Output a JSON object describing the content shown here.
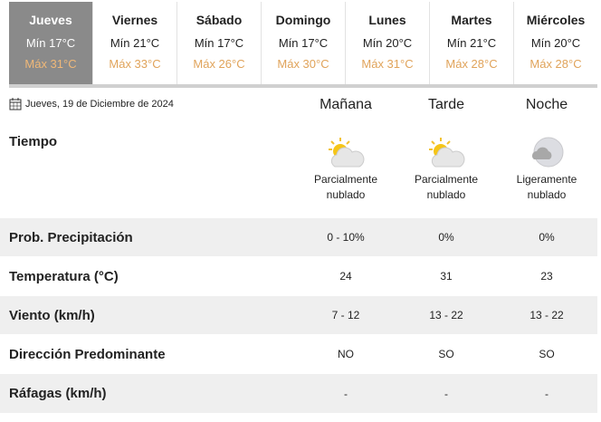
{
  "days": [
    {
      "day": "Jueves",
      "min": "Mín 17°C",
      "max": "Máx 31°C",
      "active": true
    },
    {
      "day": "Viernes",
      "min": "Mín 21°C",
      "max": "Máx 33°C"
    },
    {
      "day": "Sábado",
      "min": "Mín 17°C",
      "max": "Máx 26°C"
    },
    {
      "day": "Domingo",
      "min": "Mín 17°C",
      "max": "Máx 30°C"
    },
    {
      "day": "Lunes",
      "min": "Mín 20°C",
      "max": "Máx 31°C"
    },
    {
      "day": "Martes",
      "min": "Mín 21°C",
      "max": "Máx 28°C"
    },
    {
      "day": "Miércoles",
      "min": "Mín 20°C",
      "max": "Máx 28°C"
    }
  ],
  "date": "Jueves, 19 de Diciembre de 2024",
  "periods": [
    "Mañana",
    "Tarde",
    "Noche"
  ],
  "weather": {
    "label": "Tiempo",
    "values": [
      {
        "icon": "partly-cloudy-day-icon",
        "l1": "Parcialmente",
        "l2": "nublado"
      },
      {
        "icon": "partly-cloudy-day-icon",
        "l1": "Parcialmente",
        "l2": "nublado"
      },
      {
        "icon": "partly-cloudy-night-icon",
        "l1": "Ligeramente",
        "l2": "nublado"
      }
    ]
  },
  "rows": [
    {
      "label": "Prob. Precipitación",
      "values": [
        "0 - 10%",
        "0%",
        "0%"
      ]
    },
    {
      "label": "Temperatura (°C)",
      "values": [
        "24",
        "31",
        "23"
      ]
    },
    {
      "label": "Viento (km/h)",
      "values": [
        "7 - 12",
        "13 - 22",
        "13 - 22"
      ]
    },
    {
      "label": "Dirección Predominante",
      "values": [
        "NO",
        "SO",
        "SO"
      ]
    },
    {
      "label": "Ráfagas (km/h)",
      "values": [
        "-",
        "-",
        "-"
      ]
    }
  ],
  "colors": {
    "active_tab": "#8a8a8a",
    "max_temp": "#e0a35a",
    "stripe": "#efefef"
  }
}
